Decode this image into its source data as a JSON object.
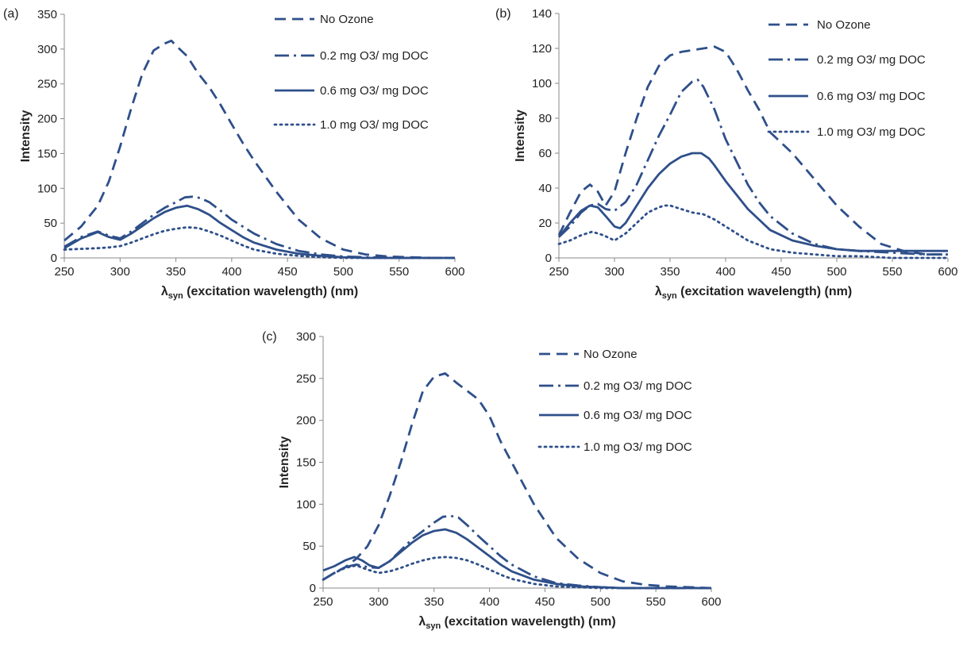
{
  "series_color": "#2E4F8A",
  "chart_data": [
    {
      "panel_label": "(a)",
      "type": "line",
      "xlabel_main": "λ",
      "xlabel_sub": "syn",
      "xlabel_rest": " (excitation wavelength) (nm)",
      "ylabel": "Intensity",
      "xlim": [
        250,
        600
      ],
      "ylim": [
        0,
        350
      ],
      "xticks": [
        "250",
        "300",
        "350",
        "400",
        "450",
        "500",
        "550",
        "600"
      ],
      "yticks": [
        "0",
        "50",
        "100",
        "150",
        "200",
        "250",
        "300",
        "350"
      ],
      "series": [
        {
          "name": "No Ozone",
          "dash": "dash",
          "x": [
            250,
            265,
            280,
            290,
            300,
            310,
            320,
            330,
            340,
            346,
            350,
            360,
            370,
            380,
            390,
            400,
            410,
            420,
            440,
            460,
            480,
            500,
            520,
            540,
            560,
            580,
            600
          ],
          "y": [
            25,
            45,
            75,
            110,
            160,
            215,
            265,
            298,
            308,
            312,
            305,
            290,
            265,
            245,
            220,
            192,
            165,
            140,
            95,
            55,
            28,
            12,
            5,
            2,
            1,
            0,
            0
          ]
        },
        {
          "name": "0.2 mg O3/ mg DOC",
          "dash": "dashdot",
          "x": [
            250,
            265,
            280,
            290,
            300,
            310,
            320,
            330,
            340,
            350,
            358,
            365,
            372,
            380,
            390,
            400,
            410,
            420,
            440,
            460,
            480,
            500,
            520,
            550,
            600
          ],
          "y": [
            16,
            30,
            38,
            32,
            28,
            38,
            50,
            62,
            72,
            80,
            87,
            88,
            86,
            80,
            68,
            55,
            45,
            35,
            20,
            10,
            5,
            2,
            1,
            0,
            0
          ]
        },
        {
          "name": "0.6 mg O3/ mg DOC",
          "dash": "solid",
          "x": [
            250,
            265,
            280,
            290,
            300,
            310,
            320,
            330,
            340,
            350,
            360,
            370,
            380,
            390,
            400,
            410,
            420,
            440,
            460,
            480,
            500,
            520,
            550,
            600
          ],
          "y": [
            14,
            28,
            37,
            30,
            26,
            35,
            46,
            57,
            66,
            72,
            75,
            70,
            62,
            50,
            40,
            30,
            22,
            12,
            6,
            3,
            1,
            0,
            0,
            0
          ]
        },
        {
          "name": "1.0 mg O3/ mg DOC",
          "dash": "dot",
          "x": [
            250,
            265,
            280,
            290,
            300,
            310,
            320,
            330,
            340,
            350,
            360,
            370,
            380,
            390,
            400,
            410,
            420,
            440,
            460,
            480,
            500,
            520,
            550,
            600
          ],
          "y": [
            12,
            13,
            14,
            15,
            17,
            22,
            28,
            34,
            39,
            42,
            44,
            43,
            38,
            32,
            25,
            18,
            12,
            6,
            3,
            1,
            0,
            0,
            0,
            0
          ]
        }
      ]
    },
    {
      "panel_label": "(b)",
      "type": "line",
      "xlabel_main": "λ",
      "xlabel_sub": "syn",
      "xlabel_rest": " (excitation wavelength) (nm)",
      "ylabel": "Intensity",
      "xlim": [
        250,
        600
      ],
      "ylim": [
        0,
        140
      ],
      "xticks": [
        "250",
        "300",
        "350",
        "400",
        "450",
        "500",
        "550",
        "600"
      ],
      "yticks": [
        "0",
        "20",
        "40",
        "60",
        "80",
        "100",
        "120",
        "140"
      ],
      "series": [
        {
          "name": "No Ozone",
          "dash": "dash",
          "x": [
            250,
            260,
            270,
            278,
            285,
            292,
            300,
            310,
            320,
            330,
            340,
            350,
            360,
            370,
            380,
            390,
            400,
            410,
            420,
            430,
            440,
            460,
            480,
            500,
            520,
            540,
            560,
            580,
            600
          ],
          "y": [
            13,
            26,
            38,
            42,
            38,
            30,
            38,
            60,
            80,
            98,
            110,
            116,
            118,
            119,
            120,
            121,
            118,
            108,
            96,
            85,
            72,
            60,
            45,
            30,
            18,
            8,
            4,
            2,
            2
          ]
        },
        {
          "name": "0.2 mg O3/ mg DOC",
          "dash": "dashdot",
          "x": [
            250,
            260,
            270,
            278,
            285,
            292,
            300,
            310,
            320,
            330,
            340,
            350,
            360,
            370,
            375,
            380,
            390,
            400,
            410,
            420,
            430,
            440,
            460,
            480,
            500,
            520,
            550,
            580,
            600
          ],
          "y": [
            12,
            18,
            26,
            30,
            31,
            28,
            27,
            32,
            42,
            56,
            70,
            82,
            95,
            101,
            102,
            98,
            85,
            68,
            55,
            42,
            32,
            24,
            14,
            8,
            5,
            4,
            3,
            2,
            2
          ]
        },
        {
          "name": "0.6 mg O3/ mg DOC",
          "dash": "solid",
          "x": [
            250,
            260,
            270,
            278,
            285,
            292,
            300,
            305,
            310,
            320,
            330,
            340,
            350,
            360,
            370,
            378,
            385,
            390,
            400,
            410,
            420,
            430,
            440,
            460,
            480,
            500,
            520,
            550,
            600
          ],
          "y": [
            12,
            20,
            27,
            30,
            29,
            24,
            18,
            17,
            20,
            30,
            40,
            48,
            54,
            58,
            60,
            60,
            57,
            53,
            44,
            36,
            28,
            22,
            16,
            10,
            7,
            5,
            4,
            4,
            4
          ]
        },
        {
          "name": "1.0 mg O3/ mg DOC",
          "dash": "dot",
          "x": [
            250,
            260,
            270,
            280,
            290,
            300,
            310,
            320,
            330,
            340,
            345,
            350,
            360,
            370,
            380,
            390,
            400,
            410,
            420,
            440,
            460,
            480,
            500,
            520,
            550,
            600
          ],
          "y": [
            8,
            10,
            13,
            15,
            13,
            10,
            14,
            20,
            26,
            29,
            30,
            30,
            28,
            26,
            25,
            22,
            18,
            14,
            10,
            5,
            3,
            2,
            1,
            1,
            0,
            0
          ]
        }
      ]
    },
    {
      "panel_label": "(c)",
      "type": "line",
      "xlabel_main": "λ",
      "xlabel_sub": "syn",
      "xlabel_rest": " (excitation wavelength) (nm)",
      "ylabel": "Intensity",
      "xlim": [
        250,
        600
      ],
      "ylim": [
        0,
        300
      ],
      "xticks": [
        "250",
        "300",
        "350",
        "400",
        "450",
        "500",
        "550",
        "600"
      ],
      "yticks": [
        "0",
        "50",
        "100",
        "150",
        "200",
        "250",
        "300"
      ],
      "series": [
        {
          "name": "No Ozone",
          "dash": "dash",
          "x": [
            250,
            260,
            270,
            280,
            290,
            300,
            310,
            320,
            330,
            340,
            350,
            360,
            370,
            380,
            390,
            400,
            410,
            420,
            430,
            440,
            460,
            480,
            500,
            520,
            540,
            560,
            580,
            600
          ],
          "y": [
            10,
            18,
            25,
            35,
            50,
            75,
            110,
            150,
            195,
            235,
            252,
            256,
            245,
            235,
            225,
            205,
            175,
            150,
            125,
            100,
            60,
            35,
            18,
            8,
            4,
            2,
            1,
            0
          ]
        },
        {
          "name": "0.2 mg O3/ mg DOC",
          "dash": "dashdot",
          "x": [
            250,
            260,
            270,
            280,
            290,
            300,
            310,
            320,
            330,
            340,
            350,
            358,
            365,
            372,
            380,
            390,
            400,
            410,
            420,
            440,
            460,
            480,
            500,
            520,
            550,
            600
          ],
          "y": [
            10,
            18,
            25,
            28,
            25,
            24,
            32,
            45,
            58,
            68,
            78,
            85,
            86,
            84,
            75,
            62,
            50,
            38,
            28,
            14,
            6,
            3,
            1,
            0,
            0,
            0
          ]
        },
        {
          "name": "0.6 mg O3/ mg DOC",
          "dash": "solid",
          "x": [
            250,
            260,
            270,
            278,
            285,
            292,
            300,
            310,
            320,
            330,
            340,
            350,
            360,
            370,
            380,
            390,
            400,
            410,
            420,
            440,
            460,
            480,
            500,
            520,
            550,
            600
          ],
          "y": [
            21,
            26,
            33,
            37,
            33,
            27,
            24,
            32,
            43,
            54,
            63,
            68,
            70,
            66,
            58,
            48,
            38,
            28,
            20,
            10,
            5,
            2,
            1,
            0,
            0,
            0
          ]
        },
        {
          "name": "1.0 mg O3/ mg DOC",
          "dash": "dot",
          "x": [
            250,
            260,
            270,
            280,
            290,
            300,
            310,
            320,
            330,
            340,
            350,
            360,
            370,
            380,
            390,
            400,
            410,
            420,
            440,
            460,
            480,
            500,
            520,
            550,
            600
          ],
          "y": [
            10,
            18,
            24,
            27,
            22,
            18,
            20,
            24,
            29,
            33,
            36,
            37,
            36,
            33,
            28,
            22,
            16,
            11,
            5,
            2,
            1,
            0,
            0,
            0,
            0
          ]
        }
      ]
    }
  ]
}
